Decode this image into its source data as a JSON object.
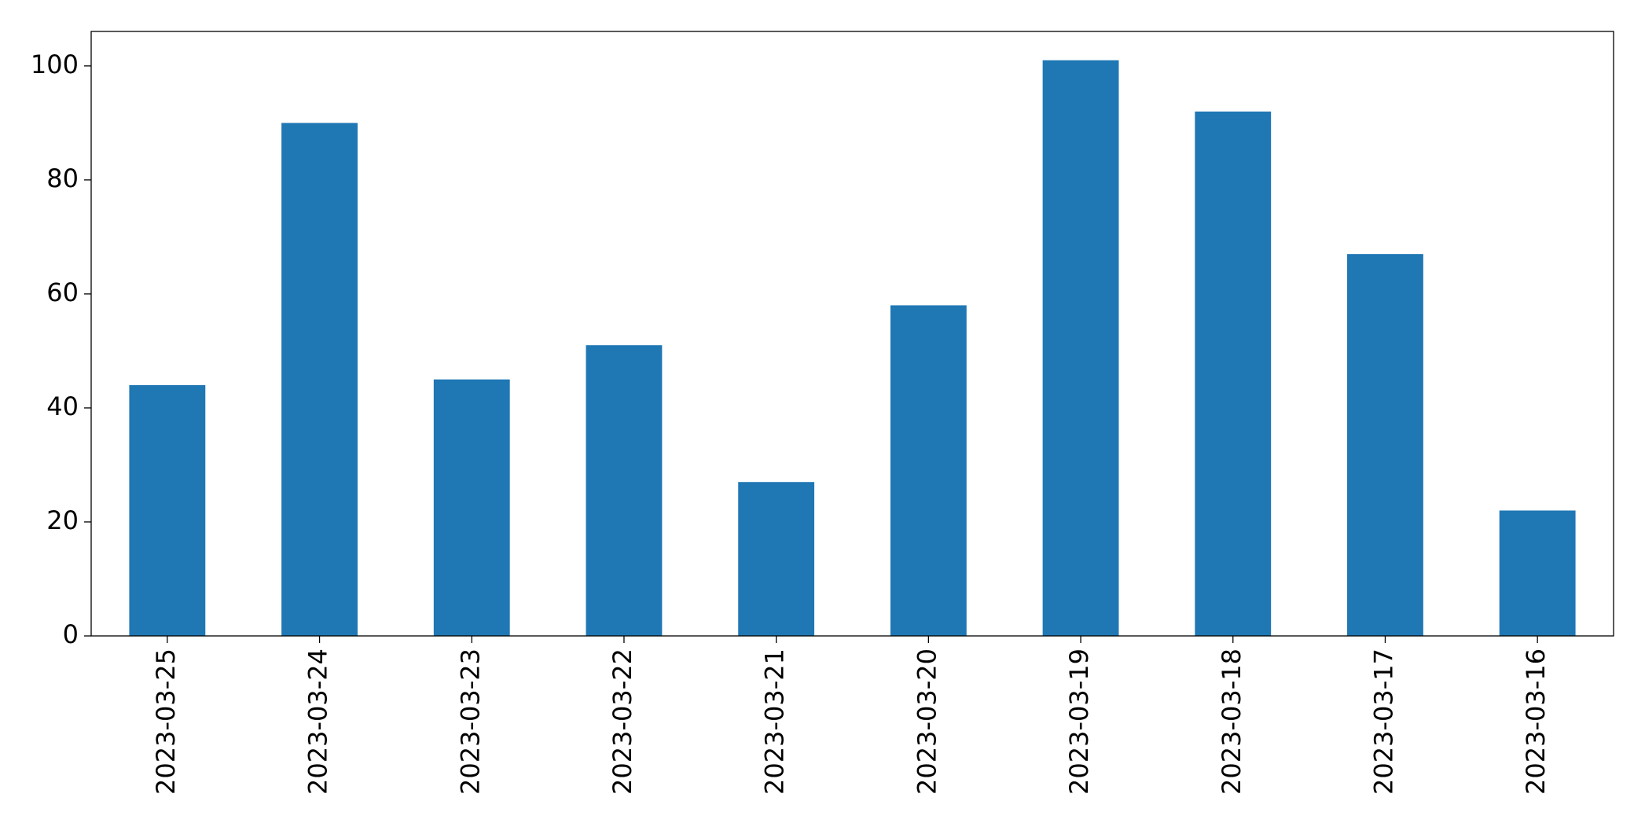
{
  "chart_data": {
    "type": "bar",
    "categories": [
      "2023-03-25",
      "2023-03-24",
      "2023-03-23",
      "2023-03-22",
      "2023-03-21",
      "2023-03-20",
      "2023-03-19",
      "2023-03-18",
      "2023-03-17",
      "2023-03-16"
    ],
    "values": [
      44,
      90,
      45,
      51,
      27,
      58,
      101,
      92,
      67,
      22
    ],
    "color": "#1f77b4",
    "ylim": [
      0,
      106.05
    ],
    "yticks": [
      0,
      20,
      40,
      60,
      80,
      100
    ],
    "grid": false
  }
}
